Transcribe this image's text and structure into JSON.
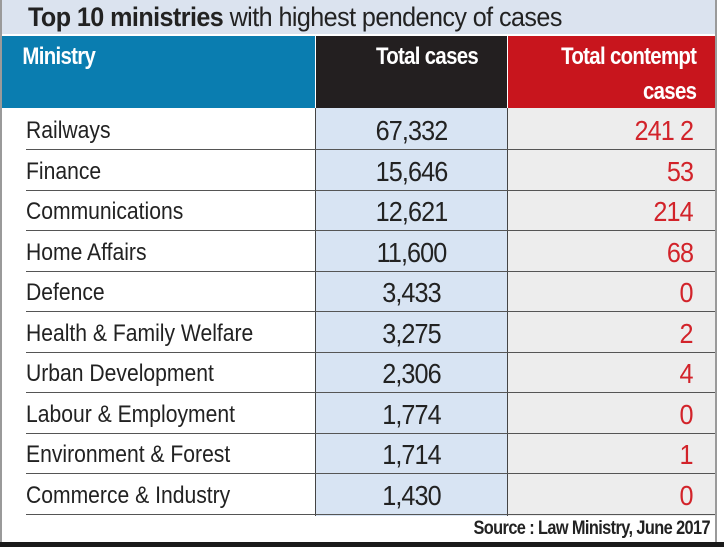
{
  "title": {
    "bold": "Top 10 ministries",
    "rest": " with highest pendency of cases"
  },
  "colors": {
    "ministry_header": "#0a7db0",
    "total_header": "#231f20",
    "contempt_header": "#c8151d",
    "contempt_value": "#d2232a",
    "total_column_bg": "#d8e4f3"
  },
  "headers": {
    "ministry": "Ministry",
    "total": "Total cases",
    "contempt_line1": "Total contempt",
    "contempt_line2": "cases"
  },
  "rows": [
    {
      "ministry": "Railways",
      "total": "67,332",
      "contempt": "241 2"
    },
    {
      "ministry": "Finance",
      "total": "15,646",
      "contempt": "53"
    },
    {
      "ministry": "Communications",
      "total": "12,621",
      "contempt": "214"
    },
    {
      "ministry": "Home Affairs",
      "total": "11,600",
      "contempt": "68"
    },
    {
      "ministry": "Defence",
      "total": "3,433",
      "contempt": "0"
    },
    {
      "ministry": "Health & Family Welfare",
      "total": "3,275",
      "contempt": "2"
    },
    {
      "ministry": "Urban Development",
      "total": "2,306",
      "contempt": "4"
    },
    {
      "ministry": "Labour & Employment",
      "total": "1,774",
      "contempt": "0"
    },
    {
      "ministry": "Environment & Forest",
      "total": "1,714",
      "contempt": "1"
    },
    {
      "ministry": "Commerce & Industry",
      "total": "1,430",
      "contempt": "0"
    }
  ],
  "source": "Source : Law Ministry, June 2017",
  "chart_data": {
    "type": "table",
    "title": "Top 10 ministries with highest pendency of cases",
    "columns": [
      "Ministry",
      "Total cases",
      "Total contempt cases"
    ],
    "categories": [
      "Railways",
      "Finance",
      "Communications",
      "Home Affairs",
      "Defence",
      "Health & Family Welfare",
      "Urban Development",
      "Labour & Employment",
      "Environment & Forest",
      "Commerce & Industry"
    ],
    "series": [
      {
        "name": "Total cases",
        "values": [
          67332,
          15646,
          12621,
          11600,
          3433,
          3275,
          2306,
          1774,
          1714,
          1430
        ]
      },
      {
        "name": "Total contempt cases",
        "values": [
          2412,
          53,
          214,
          68,
          0,
          2,
          4,
          0,
          1,
          0
        ]
      }
    ],
    "source": "Law Ministry, June 2017"
  }
}
